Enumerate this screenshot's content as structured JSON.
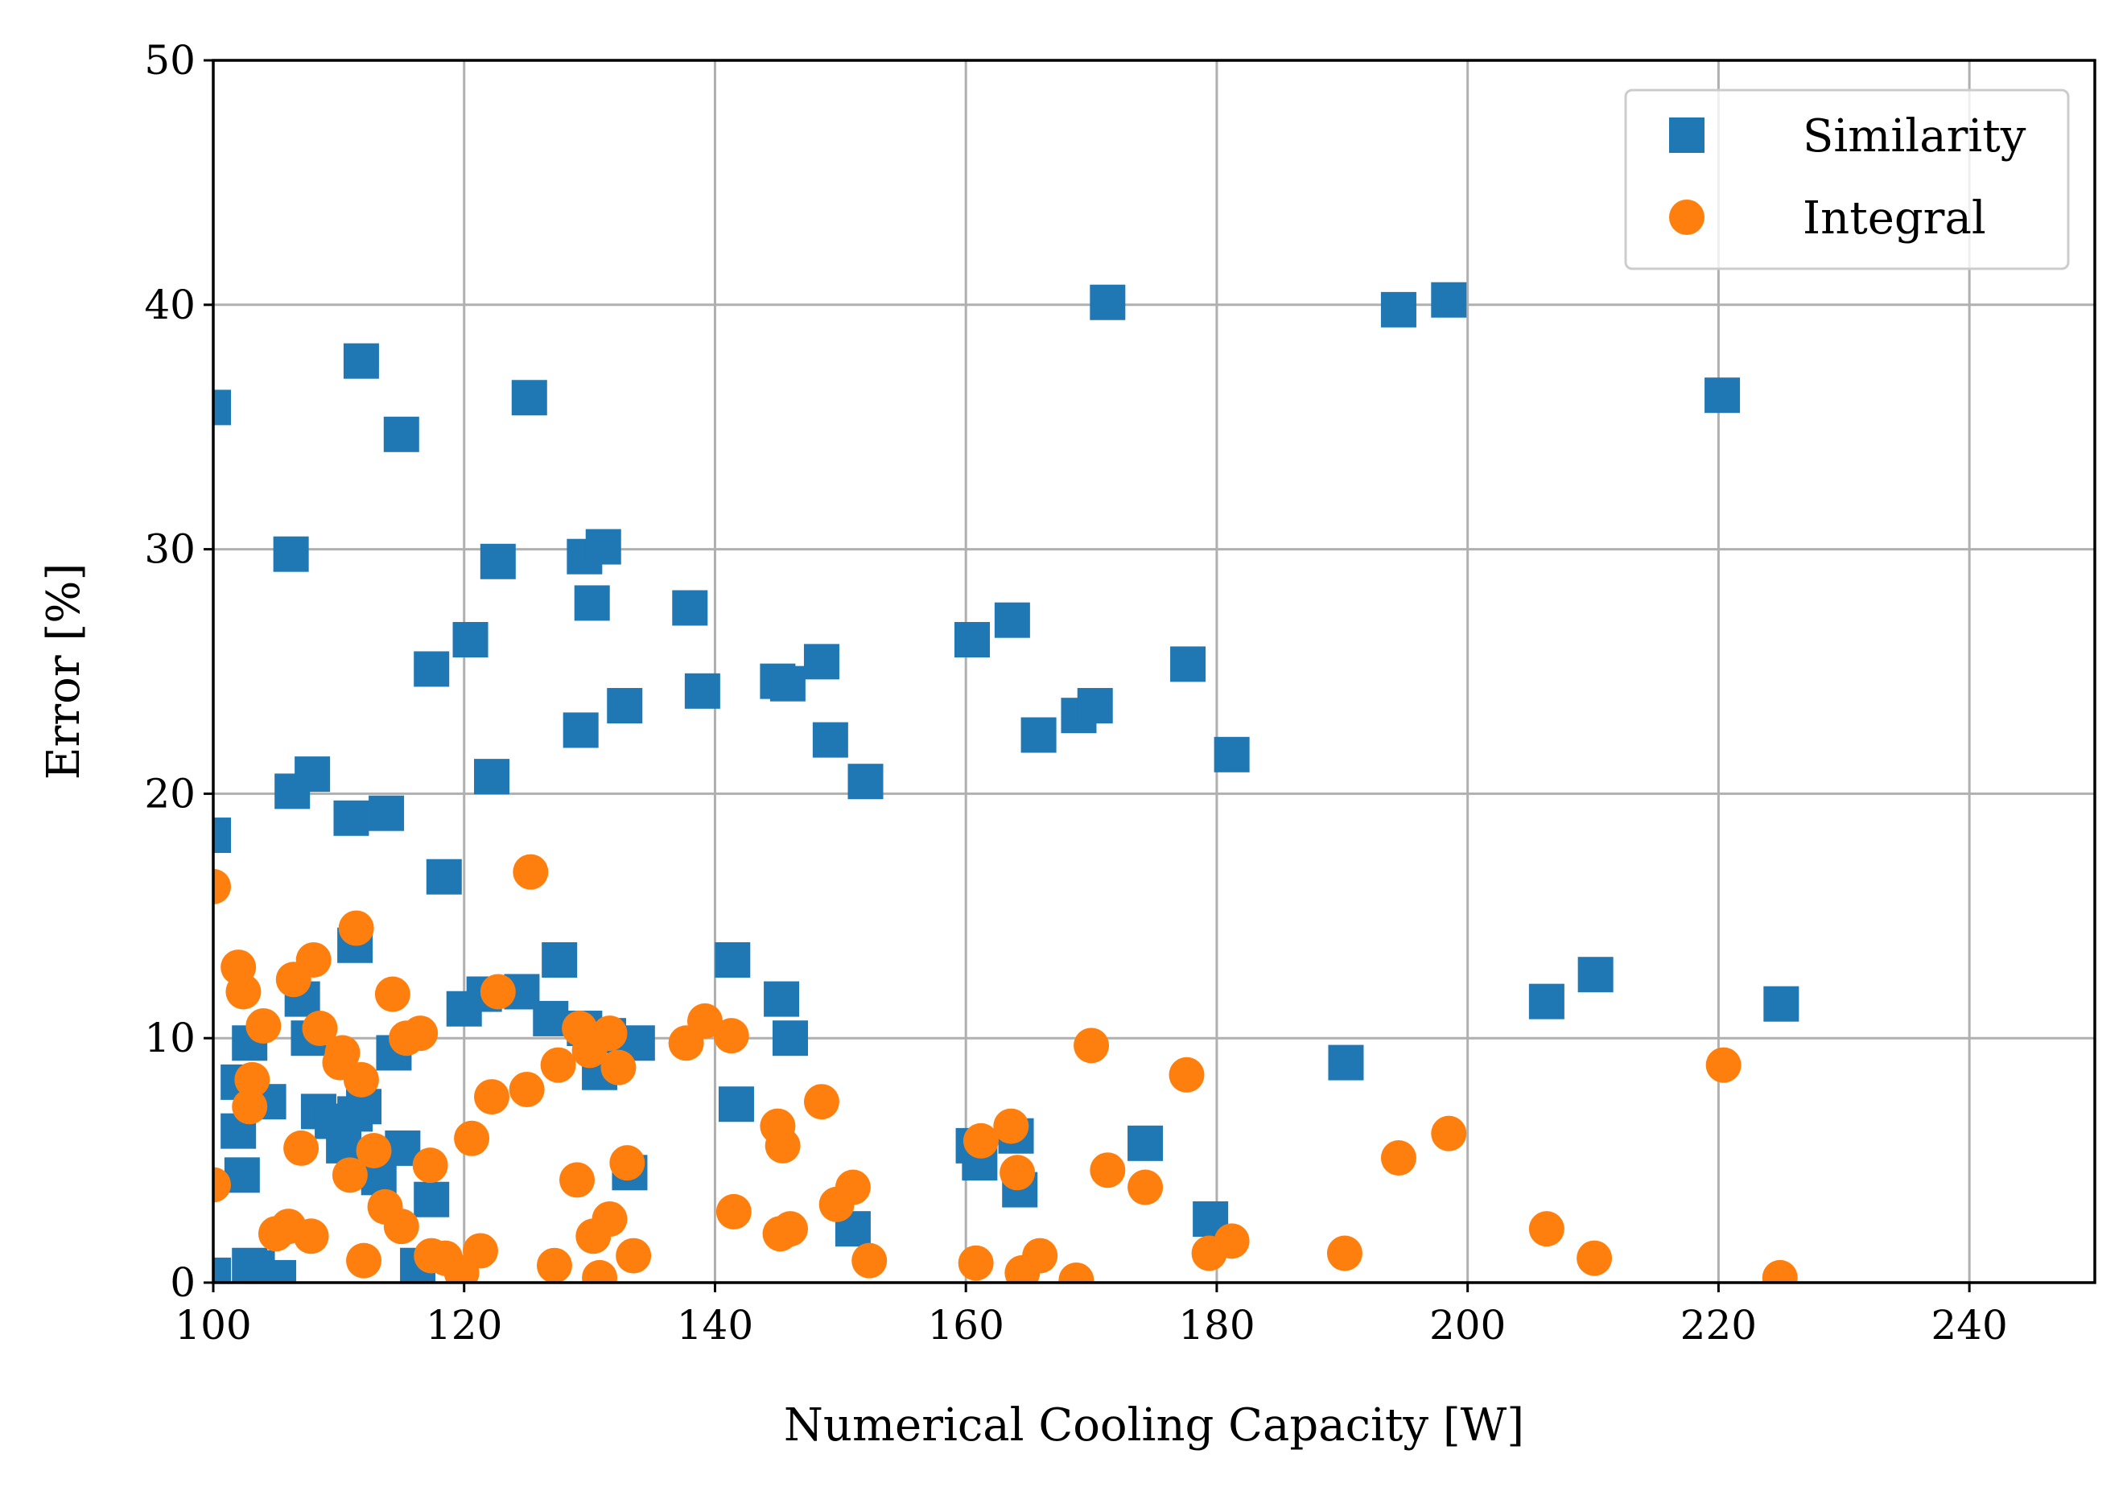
{
  "chart_data": {
    "type": "scatter",
    "xlabel": "Numerical Cooling Capacity [W]",
    "ylabel": "Error [%]",
    "xlim": [
      100,
      250
    ],
    "ylim": [
      0,
      50
    ],
    "xticks": [
      100,
      120,
      140,
      160,
      180,
      200,
      220,
      240
    ],
    "yticks": [
      0,
      10,
      20,
      30,
      40,
      50
    ],
    "grid": true,
    "legend_position": "top-right",
    "colors": {
      "Similarity": "#1f77b4",
      "Integral": "#ff7f0e"
    },
    "series": [
      {
        "name": "Similarity",
        "marker": "square",
        "points": [
          [
            100.0,
            35.8
          ],
          [
            100.0,
            18.3
          ],
          [
            100.0,
            0.3
          ],
          [
            111.8,
            37.7
          ],
          [
            115.0,
            34.7
          ],
          [
            125.2,
            36.2
          ],
          [
            106.2,
            29.8
          ],
          [
            122.7,
            29.5
          ],
          [
            129.6,
            29.7
          ],
          [
            131.1,
            30.1
          ],
          [
            130.2,
            27.8
          ],
          [
            138.0,
            27.6
          ],
          [
            120.5,
            26.3
          ],
          [
            117.4,
            25.1
          ],
          [
            129.3,
            22.6
          ],
          [
            132.8,
            23.6
          ],
          [
            139.0,
            24.2
          ],
          [
            145.0,
            24.6
          ],
          [
            145.8,
            24.5
          ],
          [
            148.5,
            25.4
          ],
          [
            149.2,
            22.2
          ],
          [
            152.0,
            20.5
          ],
          [
            160.5,
            26.3
          ],
          [
            163.7,
            27.1
          ],
          [
            165.8,
            22.4
          ],
          [
            169.0,
            23.2
          ],
          [
            170.3,
            23.6
          ],
          [
            171.3,
            40.1
          ],
          [
            177.7,
            25.3
          ],
          [
            181.2,
            21.6
          ],
          [
            194.5,
            39.8
          ],
          [
            198.5,
            40.2
          ],
          [
            220.3,
            36.3
          ],
          [
            106.3,
            20.1
          ],
          [
            107.9,
            20.8
          ],
          [
            122.2,
            20.7
          ],
          [
            111.0,
            19.0
          ],
          [
            113.8,
            19.2
          ],
          [
            118.4,
            16.6
          ],
          [
            111.3,
            13.8
          ],
          [
            127.6,
            13.2
          ],
          [
            141.4,
            13.2
          ],
          [
            145.3,
            11.6
          ],
          [
            146.0,
            10.0
          ],
          [
            206.3,
            11.5
          ],
          [
            210.2,
            12.6
          ],
          [
            225.0,
            11.4
          ],
          [
            190.3,
            9.0
          ],
          [
            121.6,
            11.8
          ],
          [
            120.0,
            11.2
          ],
          [
            124.6,
            11.9
          ],
          [
            126.9,
            10.8
          ],
          [
            129.6,
            10.4
          ],
          [
            131.5,
            10.1
          ],
          [
            133.8,
            9.8
          ],
          [
            130.8,
            8.6
          ],
          [
            107.1,
            11.6
          ],
          [
            107.6,
            10.0
          ],
          [
            102.9,
            9.8
          ],
          [
            102.0,
            8.2
          ],
          [
            104.4,
            7.4
          ],
          [
            108.4,
            7.0
          ],
          [
            109.5,
            6.6
          ],
          [
            110.4,
            5.6
          ],
          [
            111.3,
            6.9
          ],
          [
            112.0,
            7.2
          ],
          [
            114.4,
            9.4
          ],
          [
            102.0,
            6.2
          ],
          [
            102.3,
            4.4
          ],
          [
            113.2,
            4.3
          ],
          [
            115.1,
            5.5
          ],
          [
            117.4,
            3.4
          ],
          [
            141.7,
            7.3
          ],
          [
            133.2,
            4.5
          ],
          [
            151.0,
            2.2
          ],
          [
            160.6,
            5.6
          ],
          [
            161.1,
            4.9
          ],
          [
            164.0,
            6.0
          ],
          [
            164.3,
            3.8
          ],
          [
            174.3,
            5.7
          ],
          [
            179.5,
            2.6
          ],
          [
            102.9,
            0.7
          ],
          [
            103.5,
            0.6
          ],
          [
            105.2,
            0.2
          ],
          [
            116.3,
            0.7
          ]
        ]
      },
      {
        "name": "Integral",
        "marker": "circle",
        "points": [
          [
            100.0,
            16.2
          ],
          [
            125.3,
            16.8
          ],
          [
            111.4,
            14.5
          ],
          [
            102.0,
            12.9
          ],
          [
            102.4,
            11.9
          ],
          [
            106.4,
            12.4
          ],
          [
            108.0,
            13.2
          ],
          [
            114.3,
            11.8
          ],
          [
            122.7,
            11.9
          ],
          [
            104.0,
            10.5
          ],
          [
            108.5,
            10.4
          ],
          [
            110.3,
            9.4
          ],
          [
            110.1,
            9.0
          ],
          [
            111.8,
            8.3
          ],
          [
            103.1,
            8.3
          ],
          [
            102.9,
            7.2
          ],
          [
            115.4,
            10.0
          ],
          [
            116.5,
            10.2
          ],
          [
            122.2,
            7.6
          ],
          [
            125.0,
            7.9
          ],
          [
            127.5,
            8.9
          ],
          [
            129.2,
            10.4
          ],
          [
            130.0,
            9.5
          ],
          [
            131.6,
            10.2
          ],
          [
            132.3,
            8.8
          ],
          [
            137.7,
            9.8
          ],
          [
            139.2,
            10.7
          ],
          [
            141.3,
            10.1
          ],
          [
            107.0,
            5.5
          ],
          [
            110.9,
            4.4
          ],
          [
            112.8,
            5.4
          ],
          [
            117.3,
            4.8
          ],
          [
            120.6,
            5.9
          ],
          [
            100.0,
            4.0
          ],
          [
            105.0,
            2.0
          ],
          [
            106.0,
            2.3
          ],
          [
            107.8,
            1.9
          ],
          [
            113.7,
            3.1
          ],
          [
            115.0,
            2.3
          ],
          [
            112.0,
            0.9
          ],
          [
            117.4,
            1.1
          ],
          [
            118.5,
            1.0
          ],
          [
            119.8,
            0.4
          ],
          [
            121.3,
            1.3
          ],
          [
            127.2,
            0.7
          ],
          [
            129.0,
            4.2
          ],
          [
            130.3,
            1.9
          ],
          [
            131.6,
            2.6
          ],
          [
            133.0,
            4.9
          ],
          [
            133.5,
            1.1
          ],
          [
            130.8,
            0.2
          ],
          [
            141.5,
            2.9
          ],
          [
            145.0,
            6.4
          ],
          [
            145.4,
            5.6
          ],
          [
            145.2,
            2.0
          ],
          [
            146.0,
            2.2
          ],
          [
            148.5,
            7.4
          ],
          [
            149.7,
            3.2
          ],
          [
            151.0,
            3.9
          ],
          [
            152.3,
            0.9
          ],
          [
            161.2,
            5.8
          ],
          [
            163.6,
            6.4
          ],
          [
            164.1,
            4.5
          ],
          [
            160.8,
            0.8
          ],
          [
            164.5,
            0.4
          ],
          [
            165.9,
            1.1
          ],
          [
            168.8,
            0.1
          ],
          [
            170.0,
            9.7
          ],
          [
            171.3,
            4.6
          ],
          [
            174.3,
            3.9
          ],
          [
            177.6,
            8.5
          ],
          [
            179.4,
            1.2
          ],
          [
            181.2,
            1.7
          ],
          [
            190.2,
            1.2
          ],
          [
            194.5,
            5.1
          ],
          [
            198.5,
            6.1
          ],
          [
            206.3,
            2.2
          ],
          [
            210.1,
            1.0
          ],
          [
            220.4,
            8.9
          ],
          [
            224.9,
            0.2
          ]
        ]
      }
    ]
  }
}
